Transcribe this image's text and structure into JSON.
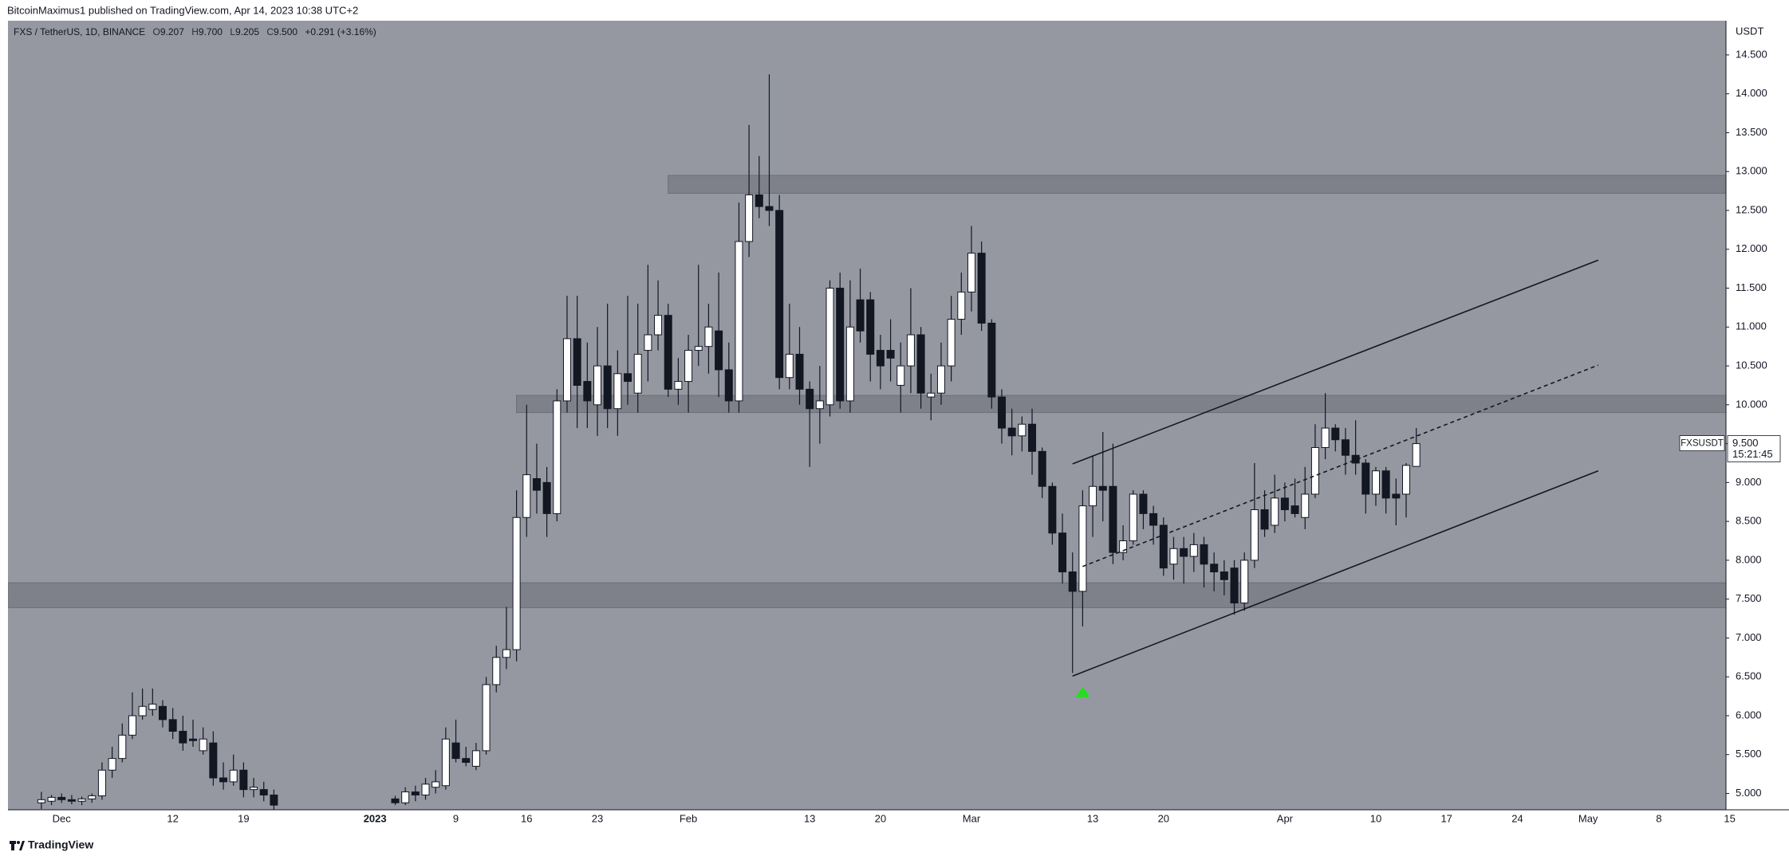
{
  "header": {
    "publisher": "BitcoinMaximus1 published on TradingView.com, Apr 14, 2023 10:38 UTC+2"
  },
  "footer": {
    "brand": "TradingView"
  },
  "chart_data": {
    "type": "candlestick",
    "legend": {
      "symbol": "FXS / TetherUS, 1D, BINANCE",
      "ohlc": [
        {
          "key": "O",
          "value": "9.207"
        },
        {
          "key": "H",
          "value": "9.700"
        },
        {
          "key": "L",
          "value": "9.205"
        },
        {
          "key": "C",
          "value": "9.500"
        }
      ],
      "change": "+0.291 (+3.16%)"
    },
    "y_unit": "USDT",
    "categories": [
      null,
      null,
      null,
      "Dec",
      null,
      null,
      null,
      null,
      null,
      null,
      null,
      null,
      null,
      null,
      "12",
      null,
      null,
      null,
      null,
      null,
      null,
      "19",
      null,
      null,
      null,
      null,
      null,
      null,
      null,
      null,
      null,
      null,
      null,
      null,
      "2023",
      null,
      null,
      null,
      null,
      null,
      null,
      null,
      "9",
      null,
      null,
      null,
      null,
      null,
      null,
      "16",
      null,
      null,
      null,
      null,
      null,
      null,
      "23",
      null,
      null,
      null,
      null,
      null,
      null,
      null,
      null,
      "Feb",
      null,
      null,
      null,
      null,
      null,
      null,
      null,
      null,
      null,
      null,
      null,
      "13",
      null,
      null,
      null,
      null,
      null,
      null,
      "20",
      null,
      null,
      null,
      null,
      null,
      null,
      null,
      null,
      "Mar",
      null,
      null,
      null,
      null,
      null,
      null,
      null,
      null,
      null,
      null,
      null,
      "13",
      null,
      null,
      null,
      null,
      null,
      null,
      "20",
      null,
      null,
      null,
      null,
      null,
      null,
      null,
      null,
      null,
      null,
      null,
      "Apr",
      null,
      null,
      null,
      null,
      null,
      null,
      null,
      null,
      "10",
      null,
      null,
      null,
      null,
      null,
      null,
      "17",
      null,
      null,
      null,
      null,
      null,
      null,
      "24",
      null,
      null,
      null,
      null,
      null,
      null,
      "May",
      null,
      null,
      null,
      null,
      null,
      null,
      "8",
      null,
      null,
      null,
      null,
      null,
      null,
      "15"
    ],
    "ohlc": [
      null,
      [
        4.88,
        5.02,
        4.8,
        4.92
      ],
      [
        4.9,
        4.98,
        4.85,
        4.95
      ],
      [
        4.95,
        5.0,
        4.88,
        4.92
      ],
      [
        4.92,
        4.98,
        4.86,
        4.9
      ],
      [
        4.9,
        4.96,
        4.85,
        4.93
      ],
      [
        4.93,
        5.0,
        4.88,
        4.97
      ],
      [
        4.97,
        5.4,
        4.92,
        5.3
      ],
      [
        5.3,
        5.6,
        5.2,
        5.45
      ],
      [
        5.45,
        5.9,
        5.4,
        5.75
      ],
      [
        5.75,
        6.3,
        5.7,
        6.0
      ],
      [
        6.0,
        6.35,
        5.95,
        6.12
      ],
      [
        6.08,
        6.35,
        6.0,
        6.15
      ],
      [
        6.12,
        6.2,
        5.85,
        5.95
      ],
      [
        5.95,
        6.1,
        5.7,
        5.8
      ],
      [
        5.8,
        6.0,
        5.55,
        5.65
      ],
      [
        5.7,
        5.95,
        5.6,
        5.68
      ],
      [
        5.55,
        5.85,
        5.5,
        5.7
      ],
      [
        5.65,
        5.8,
        5.1,
        5.2
      ],
      [
        5.2,
        5.4,
        5.05,
        5.15
      ],
      [
        5.15,
        5.5,
        5.1,
        5.3
      ],
      [
        5.3,
        5.4,
        4.95,
        5.05
      ],
      [
        5.05,
        5.2,
        4.95,
        5.08
      ],
      [
        5.05,
        5.15,
        4.9,
        4.98
      ],
      [
        4.98,
        5.05,
        4.75,
        4.85
      ],
      null,
      null,
      null,
      null,
      null,
      null,
      null,
      null,
      null,
      null,
      null,
      [
        4.93,
        4.97,
        4.85,
        4.88
      ],
      [
        4.88,
        5.08,
        4.85,
        5.02
      ],
      [
        5.02,
        5.1,
        4.9,
        4.98
      ],
      [
        4.98,
        5.2,
        4.92,
        5.12
      ],
      [
        5.08,
        5.3,
        5.0,
        5.15
      ],
      [
        5.1,
        5.85,
        5.05,
        5.7
      ],
      [
        5.65,
        5.95,
        5.4,
        5.45
      ],
      [
        5.45,
        5.6,
        5.35,
        5.4
      ],
      [
        5.35,
        5.65,
        5.3,
        5.55
      ],
      [
        5.55,
        6.5,
        5.5,
        6.4
      ],
      [
        6.4,
        6.9,
        6.3,
        6.75
      ],
      [
        6.75,
        7.4,
        6.6,
        6.85
      ],
      [
        6.85,
        8.9,
        6.7,
        8.55
      ],
      [
        8.55,
        10.0,
        8.3,
        9.1
      ],
      [
        9.05,
        9.5,
        8.6,
        8.9
      ],
      [
        9.0,
        9.2,
        8.3,
        8.6
      ],
      [
        8.6,
        10.2,
        8.5,
        10.05
      ],
      [
        10.05,
        11.4,
        9.9,
        10.85
      ],
      [
        10.85,
        11.4,
        9.7,
        10.25
      ],
      [
        10.3,
        10.8,
        9.7,
        10.05
      ],
      [
        10.0,
        11.0,
        9.6,
        10.5
      ],
      [
        10.5,
        11.3,
        9.7,
        9.95
      ],
      [
        9.95,
        10.7,
        9.6,
        10.4
      ],
      [
        10.4,
        11.4,
        10.0,
        10.3
      ],
      [
        10.15,
        11.3,
        9.9,
        10.65
      ],
      [
        10.7,
        11.8,
        10.3,
        10.9
      ],
      [
        10.9,
        11.6,
        10.7,
        11.15
      ],
      [
        11.15,
        11.3,
        10.1,
        10.2
      ],
      [
        10.2,
        10.6,
        10.0,
        10.3
      ],
      [
        10.3,
        10.9,
        9.9,
        10.7
      ],
      [
        10.7,
        11.8,
        10.5,
        10.75
      ],
      [
        10.75,
        11.3,
        10.4,
        11.0
      ],
      [
        10.95,
        11.7,
        10.1,
        10.45
      ],
      [
        10.45,
        10.8,
        9.9,
        10.05
      ],
      [
        10.05,
        12.6,
        9.9,
        12.1
      ],
      [
        12.1,
        13.6,
        11.9,
        12.7
      ],
      [
        12.7,
        13.2,
        12.4,
        12.55
      ],
      [
        12.55,
        14.25,
        12.3,
        12.5
      ],
      [
        12.5,
        12.7,
        10.2,
        10.35
      ],
      [
        10.35,
        11.3,
        10.2,
        10.65
      ],
      [
        10.65,
        11.0,
        10.0,
        10.2
      ],
      [
        10.2,
        10.3,
        9.2,
        9.95
      ],
      [
        9.95,
        10.5,
        9.5,
        10.05
      ],
      [
        10.0,
        11.6,
        9.85,
        11.5
      ],
      [
        11.5,
        11.7,
        9.95,
        10.05
      ],
      [
        10.05,
        11.6,
        9.9,
        11.0
      ],
      [
        11.35,
        11.75,
        10.8,
        10.95
      ],
      [
        11.35,
        11.45,
        10.3,
        10.65
      ],
      [
        10.7,
        10.9,
        10.2,
        10.5
      ],
      [
        10.7,
        11.1,
        10.3,
        10.6
      ],
      [
        10.25,
        10.8,
        9.9,
        10.5
      ],
      [
        10.5,
        11.5,
        10.15,
        10.9
      ],
      [
        10.9,
        11.0,
        9.95,
        10.15
      ],
      [
        10.1,
        10.4,
        9.8,
        10.15
      ],
      [
        10.15,
        10.8,
        10.0,
        10.5
      ],
      [
        10.5,
        11.4,
        10.3,
        11.1
      ],
      [
        11.1,
        11.7,
        10.9,
        11.45
      ],
      [
        11.45,
        12.3,
        11.2,
        11.95
      ],
      [
        11.95,
        12.1,
        10.95,
        11.05
      ],
      [
        11.05,
        11.1,
        9.95,
        10.1
      ],
      [
        10.1,
        10.2,
        9.5,
        9.7
      ],
      [
        9.7,
        9.95,
        9.35,
        9.6
      ],
      [
        9.6,
        9.85,
        9.4,
        9.75
      ],
      [
        9.75,
        9.95,
        9.1,
        9.4
      ],
      [
        9.4,
        9.45,
        8.8,
        8.95
      ],
      [
        8.95,
        9.0,
        8.2,
        8.35
      ],
      [
        8.35,
        8.6,
        7.7,
        7.85
      ],
      [
        7.85,
        8.1,
        6.55,
        7.6
      ],
      [
        7.6,
        8.9,
        7.15,
        8.7
      ],
      [
        8.7,
        9.35,
        8.3,
        8.95
      ],
      [
        8.95,
        9.65,
        8.5,
        8.9
      ],
      [
        8.95,
        9.5,
        7.95,
        8.1
      ],
      [
        8.1,
        8.45,
        8.0,
        8.25
      ],
      [
        8.25,
        8.9,
        8.2,
        8.85
      ],
      [
        8.85,
        8.9,
        8.4,
        8.6
      ],
      [
        8.6,
        8.7,
        8.2,
        8.45
      ],
      [
        8.45,
        8.55,
        7.8,
        7.9
      ],
      [
        7.95,
        8.3,
        7.75,
        8.15
      ],
      [
        8.15,
        8.3,
        7.7,
        8.05
      ],
      [
        8.05,
        8.35,
        7.85,
        8.2
      ],
      [
        8.2,
        8.3,
        7.65,
        7.95
      ],
      [
        7.95,
        8.1,
        7.6,
        7.85
      ],
      [
        7.85,
        8.0,
        7.55,
        7.75
      ],
      [
        7.9,
        8.0,
        7.3,
        7.45
      ],
      [
        7.45,
        8.1,
        7.35,
        8.0
      ],
      [
        8.0,
        9.25,
        7.9,
        8.65
      ],
      [
        8.65,
        8.9,
        8.3,
        8.4
      ],
      [
        8.45,
        9.1,
        8.35,
        8.8
      ],
      [
        8.8,
        9.0,
        8.5,
        8.65
      ],
      [
        8.7,
        9.05,
        8.55,
        8.6
      ],
      [
        8.55,
        9.2,
        8.4,
        8.85
      ],
      [
        8.85,
        9.75,
        8.8,
        9.45
      ],
      [
        9.45,
        10.15,
        9.3,
        9.7
      ],
      [
        9.7,
        9.75,
        9.4,
        9.55
      ],
      [
        9.55,
        9.7,
        9.1,
        9.35
      ],
      [
        9.35,
        9.8,
        9.1,
        9.25
      ],
      [
        9.25,
        9.3,
        8.6,
        8.85
      ],
      [
        8.85,
        9.2,
        8.7,
        9.15
      ],
      [
        9.15,
        9.2,
        8.6,
        8.8
      ],
      [
        8.85,
        9.05,
        8.45,
        8.8
      ],
      [
        8.85,
        9.25,
        8.55,
        9.22
      ],
      [
        9.207,
        9.7,
        9.205,
        9.5
      ],
      null,
      null,
      null,
      null,
      null,
      null,
      null,
      null,
      null,
      null,
      null,
      null,
      null,
      null,
      null,
      null,
      null,
      null,
      null,
      null,
      null,
      null,
      null,
      null,
      null,
      null,
      null,
      null,
      null,
      null,
      null
    ],
    "ylim": [
      4.79,
      14.94
    ],
    "yticks": [
      {
        "value": 5,
        "label": "5.000"
      },
      {
        "value": 5.5,
        "label": "5.500"
      },
      {
        "value": 6,
        "label": "6.000"
      },
      {
        "value": 6.5,
        "label": "6.500"
      },
      {
        "value": 7,
        "label": "7.000"
      },
      {
        "value": 7.5,
        "label": "7.500"
      },
      {
        "value": 8,
        "label": "8.000"
      },
      {
        "value": 8.5,
        "label": "8.500"
      },
      {
        "value": 9,
        "label": "9.000"
      },
      {
        "value": 9.5,
        "label": "9.500"
      },
      {
        "value": 10,
        "label": "10.000"
      },
      {
        "value": 10.5,
        "label": "10.500"
      },
      {
        "value": 11,
        "label": "11.000"
      },
      {
        "value": 11.5,
        "label": "11.500"
      },
      {
        "value": 12,
        "label": "12.000"
      },
      {
        "value": 12.5,
        "label": "12.500"
      },
      {
        "value": 13,
        "label": "13.000"
      },
      {
        "value": 13.5,
        "label": "13.500"
      },
      {
        "value": 14,
        "label": "14.000"
      },
      {
        "value": 14.5,
        "label": "14.500"
      }
    ],
    "grid": false,
    "background": "#9598a1",
    "up_color": "#ffffff",
    "down_color": "#131722",
    "zone_color": "#7f818a",
    "zones": [
      {
        "start": 63,
        "range": [
          12.72,
          12.95
        ]
      },
      {
        "start": 48,
        "range": [
          9.9,
          10.12
        ]
      },
      {
        "start": null,
        "range": [
          7.39,
          7.71
        ]
      }
    ],
    "trend_lines": [
      {
        "style": "solid",
        "from": [
          103,
          9.24
        ],
        "to": [
          155,
          11.86
        ]
      },
      {
        "style": "solid",
        "from": [
          103,
          6.51
        ],
        "to": [
          155,
          9.15
        ]
      },
      {
        "style": "dashed",
        "from": [
          104,
          7.92
        ],
        "to": [
          155,
          10.51
        ]
      }
    ],
    "signal": {
      "x": 104,
      "y": 6.3,
      "color": "#22e01b"
    },
    "last_price": {
      "name": "FXSUSDT",
      "value": 9.5,
      "label": "9.500",
      "countdown": "15:21:45"
    }
  }
}
